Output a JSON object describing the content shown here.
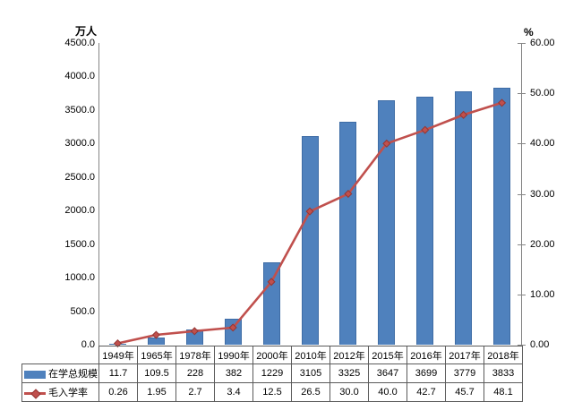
{
  "chart_data": {
    "type": "bar",
    "subtype": "combo-bar-line-dual-axis",
    "title": "",
    "categories": [
      "1949年",
      "1965年",
      "1978年",
      "1990年",
      "2000年",
      "2010年",
      "2012年",
      "2015年",
      "2016年",
      "2017年",
      "2018年"
    ],
    "series": [
      {
        "name": "在学总规模",
        "type": "bar",
        "axis": "left",
        "color": "#4F81BD",
        "border_color": "#3E6CA5",
        "values": [
          11.7,
          109.5,
          228,
          382,
          1229,
          3105,
          3325,
          3647,
          3699,
          3779,
          3833
        ],
        "display_values": [
          "11.7",
          "109.5",
          "228",
          "382",
          "1229",
          "3105",
          "3325",
          "3647",
          "3699",
          "3779",
          "3833"
        ]
      },
      {
        "name": "毛入学率",
        "type": "line",
        "axis": "right",
        "color": "#C0504D",
        "marker": "diamond",
        "marker_border_color": "#943634",
        "values": [
          0.26,
          1.95,
          2.7,
          3.4,
          12.5,
          26.5,
          30.0,
          40.0,
          42.7,
          45.7,
          48.1
        ],
        "display_values": [
          "0.26",
          "1.95",
          "2.7",
          "3.4",
          "12.5",
          "26.5",
          "30.0",
          "40.0",
          "42.7",
          "45.7",
          "48.1"
        ]
      }
    ],
    "left_axis": {
      "unit": "万人",
      "min": 0,
      "max": 4500,
      "step": 500,
      "tick_labels": [
        "4500.0",
        "4000.0",
        "3500.0",
        "3000.0",
        "2500.0",
        "2000.0",
        "1500.0",
        "1000.0",
        "500.0",
        "0.0"
      ]
    },
    "right_axis": {
      "unit": "%",
      "min": 0,
      "max": 60,
      "step": 10,
      "tick_labels": [
        "60.00",
        "50.00",
        "40.00",
        "30.00",
        "20.00",
        "10.00",
        "0.00"
      ]
    },
    "grid": false,
    "legend_position": "data-table-left",
    "data_table_shown": true
  }
}
